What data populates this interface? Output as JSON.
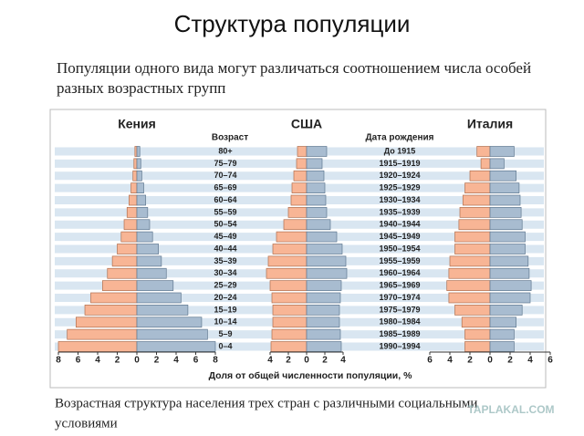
{
  "slide_title": "Структура популяции",
  "subtitle_lines": [
    "Популяции одного вида могут различаться соотношением числа особей",
    "разных возрастных групп"
  ],
  "caption_lines": [
    "Возрастная структура населения трех стран с различными социальными",
    "условиями"
  ],
  "watermark": "TAPLAKAL.COM",
  "x_axis_label": "Доля от общей численности популяции, %",
  "age_axis": {
    "title": "Возраст",
    "categories": [
      "80+",
      "75–79",
      "70–74",
      "65–69",
      "60–64",
      "55–59",
      "50–54",
      "45–49",
      "40–44",
      "35–39",
      "30–34",
      "25–29",
      "20–24",
      "15–19",
      "10–14",
      "5–9",
      "0–4"
    ]
  },
  "birth_axis": {
    "title": "Дата рождения",
    "labels": [
      "До 1915",
      "1915–1919",
      "1920–1924",
      "1925–1929",
      "1930–1934",
      "1935–1939",
      "1940–1944",
      "1945–1949",
      "1950–1954",
      "1955–1959",
      "1960–1964",
      "1965–1969",
      "1970–1974",
      "1975–1979",
      "1980–1984",
      "1985–1989",
      "1990–1994"
    ]
  },
  "chart_data": [
    {
      "type": "pyramid",
      "title": "Кения",
      "xlim": [
        0,
        8
      ],
      "xticks": [
        0,
        2,
        4,
        6,
        8
      ],
      "series": [
        {
          "color": "#f8b595",
          "values": [
            0.2,
            0.3,
            0.4,
            0.6,
            0.8,
            1.0,
            1.3,
            1.6,
            2.0,
            2.5,
            3.0,
            3.5,
            4.7,
            5.3,
            6.2,
            7.1,
            8.0
          ]
        },
        {
          "color": "#a8bcd0",
          "values": [
            0.3,
            0.4,
            0.5,
            0.7,
            0.9,
            1.1,
            1.3,
            1.6,
            2.2,
            2.5,
            3.0,
            3.7,
            4.5,
            5.2,
            6.6,
            7.2,
            8.0
          ]
        }
      ]
    },
    {
      "type": "pyramid",
      "title": "США",
      "xlim": [
        0,
        4
      ],
      "xticks": [
        0,
        2,
        4
      ],
      "series": [
        {
          "color": "#f8b595",
          "values": [
            1.0,
            1.1,
            1.4,
            1.6,
            1.7,
            2.0,
            2.5,
            3.3,
            3.7,
            4.2,
            4.4,
            4.0,
            3.8,
            3.7,
            3.7,
            3.8,
            3.9
          ]
        },
        {
          "color": "#a8bcd0",
          "values": [
            2.2,
            1.7,
            1.9,
            2.0,
            2.1,
            2.2,
            2.6,
            3.3,
            3.9,
            4.3,
            4.4,
            3.8,
            3.7,
            3.6,
            3.6,
            3.7,
            3.8
          ]
        }
      ]
    },
    {
      "type": "pyramid",
      "title": "Италия",
      "xlim": [
        0,
        6
      ],
      "xticks": [
        0,
        2,
        4,
        6
      ],
      "series": [
        {
          "color": "#f8b595",
          "values": [
            1.3,
            0.9,
            2.0,
            2.5,
            2.7,
            3.0,
            3.1,
            3.5,
            3.5,
            4.0,
            4.1,
            4.3,
            4.1,
            3.5,
            2.8,
            2.5,
            2.5
          ]
        },
        {
          "color": "#a8bcd0",
          "values": [
            2.4,
            1.4,
            2.6,
            2.9,
            3.0,
            3.1,
            3.2,
            3.5,
            3.5,
            3.8,
            3.9,
            4.1,
            4.0,
            3.2,
            2.6,
            2.4,
            2.4
          ]
        }
      ]
    }
  ]
}
